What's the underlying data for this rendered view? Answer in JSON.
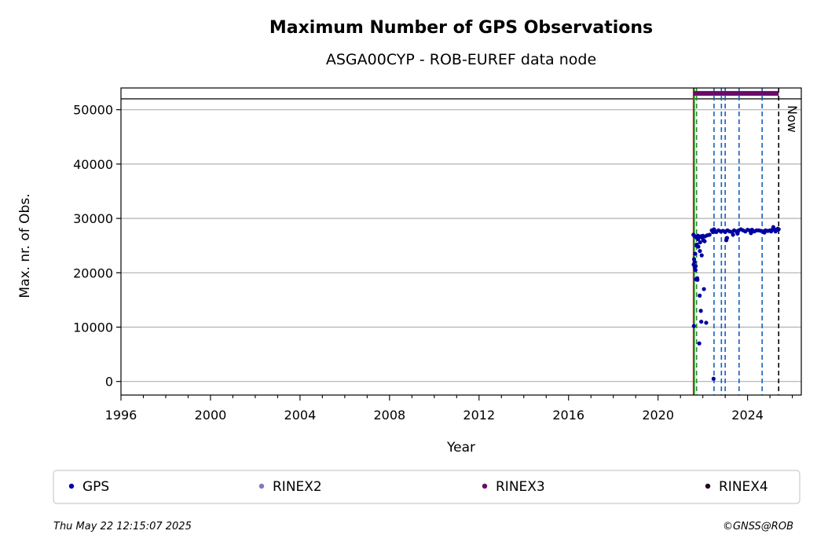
{
  "chart_data": {
    "type": "scatter",
    "title": "Maximum Number of GPS Observations",
    "subtitle": "ASGA00CYP - ROB-EUREF data node",
    "xlabel": "Year",
    "ylabel": "Max. nr. of Obs.",
    "xlim": [
      1996.0,
      2026.4
    ],
    "ylim": [
      -2500,
      54000
    ],
    "x_ticks": [
      1996,
      2000,
      2004,
      2008,
      2012,
      2016,
      2020,
      2024
    ],
    "y_ticks": [
      0,
      10000,
      20000,
      30000,
      40000,
      50000
    ],
    "grid": "horizontal",
    "legend_placement": "bottom",
    "now_label": "Now",
    "now_x": 2025.39,
    "reference_line_y": 52000,
    "event_lines": [
      {
        "x": 2021.58,
        "color": "#cc2200",
        "style": "solid"
      },
      {
        "x": 2021.62,
        "color": "#228b22",
        "style": "solid"
      },
      {
        "x": 2021.72,
        "color": "#228b22",
        "style": "dashed"
      },
      {
        "x": 2022.5,
        "color": "#1560bd",
        "style": "dashed"
      },
      {
        "x": 2022.83,
        "color": "#1560bd",
        "style": "dashed"
      },
      {
        "x": 2023.0,
        "color": "#1560bd",
        "style": "dashed"
      },
      {
        "x": 2023.62,
        "color": "#1560bd",
        "style": "dashed"
      },
      {
        "x": 2024.65,
        "color": "#1560bd",
        "style": "dashed"
      },
      {
        "x": 2025.39,
        "color": "#000000",
        "style": "dashed"
      }
    ],
    "series": [
      {
        "name": "GPS",
        "color": "#0000a0",
        "x": [
          2021.58,
          2021.59,
          2021.6,
          2021.62,
          2021.63,
          2021.64,
          2021.66,
          2021.67,
          2021.69,
          2021.71,
          2021.73,
          2021.75,
          2021.78,
          2021.8,
          2021.83,
          2021.86,
          2021.88,
          2021.9,
          2021.93,
          2021.96,
          2022.0,
          2022.05,
          2022.1,
          2022.15,
          2022.2,
          2022.3,
          2022.4,
          2022.45,
          2022.5,
          2022.55,
          2022.6,
          2022.7,
          2022.8,
          2022.9,
          2023.0,
          2023.05,
          2023.1,
          2023.2,
          2023.3,
          2023.4,
          2023.5,
          2023.6,
          2023.7,
          2023.8,
          2023.9,
          2024.0,
          2024.1,
          2024.2,
          2024.3,
          2024.4,
          2024.5,
          2024.6,
          2024.7,
          2024.8,
          2024.9,
          2025.0,
          2025.05,
          2025.1,
          2025.15,
          2025.2,
          2025.25,
          2025.3,
          2025.35,
          2025.39,
          2021.61,
          2021.68,
          2021.72,
          2021.76,
          2021.79,
          2021.84,
          2021.87,
          2021.91,
          2021.95,
          2022.02,
          2022.08,
          2022.48,
          2023.08,
          2023.35,
          2023.55,
          2024.15,
          2024.75
        ],
        "y": [
          27000,
          21500,
          10200,
          26800,
          22000,
          21000,
          23500,
          20500,
          18800,
          26500,
          25200,
          19000,
          26800,
          24800,
          26600,
          15800,
          25600,
          26700,
          11000,
          26500,
          26800,
          17000,
          26700,
          10800,
          26900,
          27000,
          27800,
          27500,
          28000,
          27600,
          27500,
          27800,
          27600,
          27700,
          27500,
          26000,
          27800,
          27600,
          27500,
          27800,
          27600,
          27800,
          28000,
          27800,
          27600,
          27900,
          27800,
          27900,
          27600,
          27800,
          27800,
          27700,
          27600,
          27800,
          27700,
          27800,
          27600,
          27900,
          28400,
          28000,
          27600,
          27900,
          28100,
          28000,
          22500,
          21200,
          25000,
          18700,
          26200,
          7000,
          24000,
          13000,
          23200,
          26000,
          25800,
          500,
          26400,
          27000,
          27200,
          27300,
          27400
        ]
      },
      {
        "name": "RINEX2",
        "color": "#7b7bbd",
        "x": [],
        "y": []
      },
      {
        "name": "RINEX3",
        "color": "#6a0a6a",
        "x_start": 2021.58,
        "x_end": 2025.39,
        "y": 53000
      },
      {
        "name": "RINEX4",
        "color": "#2a0020",
        "x": [],
        "y": []
      }
    ]
  },
  "footer": {
    "timestamp": "Thu May 22 12:15:07 2025",
    "copyright": "©GNSS@ROB"
  }
}
